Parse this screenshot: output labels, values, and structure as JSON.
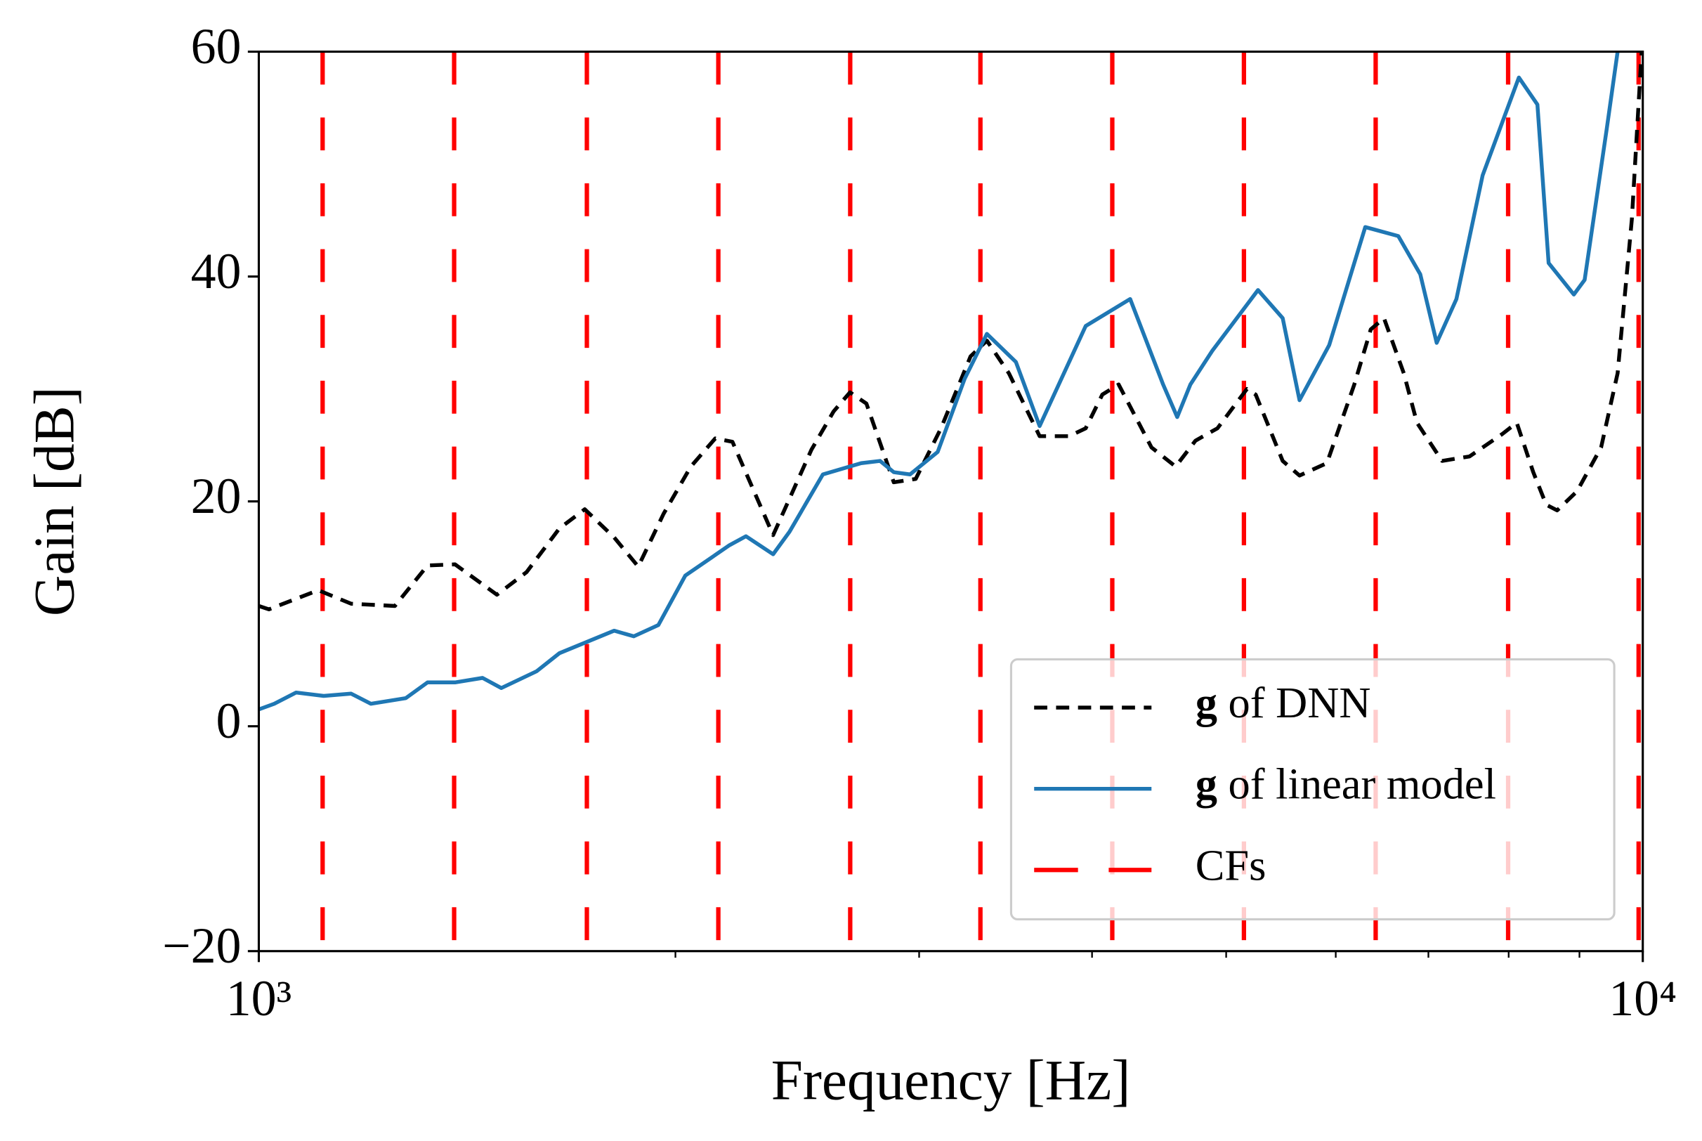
{
  "chart_data": {
    "type": "line",
    "xlabel": "Frequency [Hz]",
    "ylabel": "Gain [dB]",
    "xscale": "log",
    "xlim": [
      1000,
      10000
    ],
    "ylim": [
      -20,
      60
    ],
    "xticks": [
      {
        "value": 1000,
        "label": "10³"
      },
      {
        "value": 10000,
        "label": "10⁴"
      }
    ],
    "xminor_ticks": [
      2000,
      3000,
      4000,
      5000,
      6000,
      7000,
      8000,
      9000
    ],
    "yticks": [
      {
        "value": -20,
        "label": "−20"
      },
      0,
      20,
      40,
      60
    ],
    "legend": "lower right",
    "series": [
      {
        "name": "g of DNN",
        "color": "#000000",
        "style": "dashed",
        "x": [
          1000,
          1017,
          1104,
          1166,
          1254,
          1324,
          1386,
          1486,
          1561,
          1649,
          1720,
          1806,
          1880,
          1961,
          2052,
          2137,
          2199,
          2353,
          2508,
          2602,
          2674,
          2748,
          2876,
          2983,
          3111,
          3268,
          3358,
          3483,
          3666,
          3851,
          3958,
          4069,
          4181,
          4416,
          4597,
          4751,
          4928,
          5176,
          5252,
          5493,
          5649,
          5912,
          6188,
          6360,
          6501,
          6719,
          6868,
          7161,
          7496,
          7917,
          8108,
          8334,
          8516,
          8672,
          8964,
          9330,
          9590,
          9820,
          9981
        ],
        "values": [
          10.7,
          10.4,
          12.1,
          10.9,
          10.7,
          14.3,
          14.4,
          11.7,
          13.7,
          17.6,
          19.3,
          16.8,
          14.2,
          18.9,
          23.1,
          25.6,
          25.3,
          17.0,
          24.6,
          28.0,
          29.7,
          28.7,
          21.7,
          22.0,
          26.5,
          32.9,
          34.3,
          31.4,
          25.8,
          25.8,
          26.5,
          29.5,
          30.4,
          24.8,
          23.1,
          25.4,
          26.5,
          30.0,
          29.5,
          23.6,
          22.3,
          23.4,
          30.4,
          35.3,
          36.3,
          31.4,
          27.0,
          23.6,
          24.0,
          26.0,
          27.0,
          22.6,
          19.7,
          19.2,
          20.9,
          24.8,
          31.4,
          45.1,
          60
        ]
      },
      {
        "name": "g of linear model",
        "color": "#1f77b4",
        "style": "solid",
        "x": [
          1000,
          1026,
          1064,
          1114,
          1166,
          1205,
          1277,
          1324,
          1386,
          1451,
          1497,
          1588,
          1649,
          1806,
          1866,
          1944,
          2033,
          2188,
          2249,
          2353,
          2418,
          2556,
          2724,
          2811,
          2876,
          2955,
          3094,
          3236,
          3358,
          3524,
          3666,
          3958,
          4262,
          4502,
          4609,
          4711,
          4886,
          5272,
          5493,
          5649,
          5935,
          6302,
          6658,
          6906,
          7097,
          7334,
          7661,
          8137,
          8392,
          8550,
          8916,
          9078,
          9417,
          9590
        ],
        "values": [
          1.5,
          2.0,
          3.0,
          2.7,
          2.9,
          2.0,
          2.5,
          3.9,
          3.9,
          4.3,
          3.4,
          4.9,
          6.5,
          8.5,
          8.0,
          9.0,
          13.4,
          16.1,
          16.9,
          15.3,
          17.3,
          22.4,
          23.4,
          23.6,
          22.6,
          22.4,
          24.4,
          30.9,
          34.9,
          32.4,
          26.7,
          35.6,
          38.0,
          30.4,
          27.5,
          30.4,
          33.4,
          38.8,
          36.3,
          29.0,
          33.9,
          44.4,
          43.6,
          40.2,
          34.1,
          38.0,
          49.0,
          57.7,
          55.3,
          41.2,
          38.4,
          39.7,
          53.1,
          60
        ]
      }
    ],
    "vlines": {
      "name": "CFs",
      "color": "#ff0000",
      "style": "longdash",
      "x": [
        1112,
        1384,
        1726,
        2148,
        2675,
        3322,
        4137,
        5150,
        6412,
        7993,
        9931
      ]
    }
  }
}
